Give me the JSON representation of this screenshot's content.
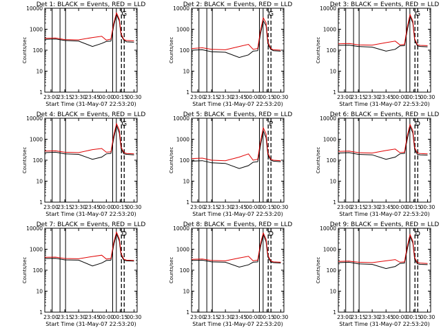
{
  "chart_data": [
    {
      "type": "line",
      "title": "Det 1: BLACK = Events, RED = LLD",
      "xlabel": "Start Time (31-May-07 22:53:20)",
      "ylabel": "Counts/sec",
      "xlim": [
        "22:53:20",
        "00:33:20"
      ],
      "ylim": [
        1,
        10000
      ],
      "y_scale": "log",
      "x_ticks": [
        "23:00",
        "23:15",
        "23:30",
        "23:45",
        "00:00",
        "00:15",
        "00:30"
      ],
      "y_ticks": [
        "1",
        "10",
        "100",
        "1000",
        "10000"
      ],
      "marker_text": "G",
      "series": [
        {
          "color": "#000000",
          "x": [
            "22:53:20",
            "23:05",
            "23:15",
            "23:30",
            "23:45",
            "23:55",
            "00:00",
            "00:05",
            "00:08",
            "00:11",
            "00:14",
            "00:16",
            "00:19",
            "00:22",
            "00:30"
          ],
          "y": [
            330,
            340,
            290,
            270,
            150,
            210,
            260,
            270,
            1500,
            5000,
            2500,
            500,
            300,
            250,
            240
          ]
        },
        {
          "color": "#e00000",
          "x": [
            "22:53:20",
            "23:05",
            "23:15",
            "23:30",
            "23:45",
            "23:55",
            "00:00",
            "00:05",
            "00:08",
            "00:11",
            "00:14",
            "00:16",
            "00:19",
            "00:22",
            "00:30"
          ],
          "y": [
            370,
            380,
            320,
            310,
            400,
            460,
            300,
            340,
            2000,
            6000,
            3000,
            600,
            320,
            290,
            280
          ]
        }
      ]
    },
    {
      "type": "line",
      "title": "Det 2: BLACK = Events, RED = LLD",
      "xlabel": "Start Time (31-May-07 22:53:20)",
      "ylabel": "Counts/sec",
      "xlim": [
        "22:53:20",
        "00:33:20"
      ],
      "ylim": [
        1,
        10000
      ],
      "y_scale": "log",
      "x_ticks": [
        "23:00",
        "23:15",
        "23:30",
        "23:45",
        "00:00",
        "00:15",
        "00:30"
      ],
      "y_ticks": [
        "1",
        "10",
        "100",
        "1000",
        "10000"
      ],
      "marker_text": "G",
      "series": [
        {
          "color": "#000000",
          "x": [
            "22:53:20",
            "23:05",
            "23:15",
            "23:30",
            "23:45",
            "23:55",
            "00:00",
            "00:05",
            "00:08",
            "00:11",
            "00:14",
            "00:16",
            "00:19",
            "00:22",
            "00:30"
          ],
          "y": [
            100,
            105,
            85,
            80,
            45,
            60,
            90,
            95,
            600,
            2500,
            1500,
            200,
            110,
            95,
            90
          ]
        },
        {
          "color": "#e00000",
          "x": [
            "22:53:20",
            "23:05",
            "23:15",
            "23:30",
            "23:45",
            "23:55",
            "00:00",
            "00:05",
            "00:08",
            "00:11",
            "00:14",
            "00:16",
            "00:19",
            "00:22",
            "00:30"
          ],
          "y": [
            120,
            130,
            110,
            105,
            150,
            190,
            110,
            120,
            900,
            3500,
            2000,
            250,
            120,
            105,
            100
          ]
        }
      ]
    },
    {
      "type": "line",
      "title": "Det 3: BLACK = Events, RED = LLD",
      "xlabel": "Start Time (31-May-07 22:53:20)",
      "ylabel": "Counts/sec",
      "xlim": [
        "22:53:20",
        "00:33:20"
      ],
      "ylim": [
        1,
        10000
      ],
      "y_scale": "log",
      "x_ticks": [
        "23:00",
        "23:15",
        "23:30",
        "23:45",
        "00:00",
        "00:15",
        "00:30"
      ],
      "y_ticks": [
        "1",
        "10",
        "100",
        "1000",
        "10000"
      ],
      "marker_text": "G",
      "series": [
        {
          "color": "#000000",
          "x": [
            "22:53:20",
            "23:05",
            "23:15",
            "23:30",
            "23:45",
            "23:55",
            "00:00",
            "00:05",
            "00:08",
            "00:11",
            "00:14",
            "00:16",
            "00:19",
            "00:22",
            "00:30"
          ],
          "y": [
            170,
            175,
            150,
            140,
            90,
            110,
            160,
            165,
            900,
            4000,
            2000,
            300,
            160,
            150,
            145
          ]
        },
        {
          "color": "#e00000",
          "x": [
            "22:53:20",
            "23:05",
            "23:15",
            "23:30",
            "23:45",
            "23:55",
            "00:00",
            "00:05",
            "00:08",
            "00:11",
            "00:14",
            "00:16",
            "00:19",
            "00:22",
            "00:30"
          ],
          "y": [
            200,
            210,
            180,
            175,
            230,
            270,
            180,
            190,
            1300,
            5000,
            2500,
            350,
            180,
            170,
            165
          ]
        }
      ]
    },
    {
      "type": "line",
      "title": "Det 4: BLACK = Events, RED = LLD",
      "xlabel": "Start Time (31-May-07 22:53:20)",
      "ylabel": "Counts/sec",
      "xlim": [
        "22:53:20",
        "00:33:20"
      ],
      "ylim": [
        1,
        10000
      ],
      "y_scale": "log",
      "x_ticks": [
        "23:00",
        "23:15",
        "23:30",
        "23:45",
        "00:00",
        "00:15",
        "00:30"
      ],
      "y_ticks": [
        "1",
        "10",
        "100",
        "1000",
        "10000"
      ],
      "marker_text": "G",
      "series": [
        {
          "color": "#000000",
          "x": [
            "22:53:20",
            "23:05",
            "23:15",
            "23:30",
            "23:45",
            "23:55",
            "00:00",
            "00:05",
            "00:08",
            "00:11",
            "00:14",
            "00:16",
            "00:19",
            "00:22",
            "00:30"
          ],
          "y": [
            230,
            240,
            200,
            190,
            110,
            140,
            200,
            210,
            1100,
            4500,
            2000,
            350,
            200,
            190,
            180
          ]
        },
        {
          "color": "#e00000",
          "x": [
            "22:53:20",
            "23:05",
            "23:15",
            "23:30",
            "23:45",
            "23:55",
            "00:00",
            "00:05",
            "00:08",
            "00:11",
            "00:14",
            "00:16",
            "00:19",
            "00:22",
            "00:30"
          ],
          "y": [
            270,
            280,
            240,
            230,
            320,
            360,
            240,
            250,
            1600,
            5500,
            2800,
            420,
            230,
            210,
            200
          ]
        }
      ]
    },
    {
      "type": "line",
      "title": "Det 5: BLACK = Events, RED = LLD",
      "xlabel": "Start Time (31-May-07 22:53:20)",
      "ylabel": "Counts/sec",
      "xlim": [
        "22:53:20",
        "00:33:20"
      ],
      "ylim": [
        1,
        10000
      ],
      "y_scale": "log",
      "x_ticks": [
        "23:00",
        "23:15",
        "23:30",
        "23:45",
        "00:00",
        "00:15",
        "00:30"
      ],
      "y_ticks": [
        "1",
        "10",
        "100",
        "1000",
        "10000"
      ],
      "marker_text": "P",
      "series": [
        {
          "color": "#000000",
          "x": [
            "22:53:20",
            "23:05",
            "23:15",
            "23:30",
            "23:45",
            "23:55",
            "00:00",
            "00:05",
            "00:08",
            "00:11",
            "00:14",
            "00:16",
            "00:19",
            "00:22",
            "00:30"
          ],
          "y": [
            90,
            95,
            75,
            70,
            40,
            55,
            80,
            85,
            500,
            2500,
            1200,
            180,
            100,
            90,
            85
          ]
        },
        {
          "color": "#e00000",
          "x": [
            "22:53:20",
            "23:05",
            "23:15",
            "23:30",
            "23:45",
            "23:55",
            "00:00",
            "00:05",
            "00:08",
            "00:11",
            "00:14",
            "00:16",
            "00:19",
            "00:22",
            "00:30"
          ],
          "y": [
            120,
            125,
            100,
            95,
            140,
            200,
            100,
            110,
            800,
            3500,
            1800,
            220,
            110,
            100,
            95
          ]
        }
      ]
    },
    {
      "type": "line",
      "title": "Det 6: BLACK = Events, RED = LLD",
      "xlabel": "Start Time (31-May-07 22:53:20)",
      "ylabel": "Counts/sec",
      "xlim": [
        "22:53:20",
        "00:33:20"
      ],
      "ylim": [
        1,
        10000
      ],
      "y_scale": "log",
      "x_ticks": [
        "23:00",
        "23:15",
        "23:30",
        "23:45",
        "00:00",
        "00:15",
        "00:30"
      ],
      "y_ticks": [
        "1",
        "10",
        "100",
        "1000",
        "10000"
      ],
      "marker_text": "D",
      "series": [
        {
          "color": "#000000",
          "x": [
            "22:53:20",
            "23:05",
            "23:15",
            "23:30",
            "23:45",
            "23:55",
            "00:00",
            "00:05",
            "00:08",
            "00:11",
            "00:14",
            "00:16",
            "00:19",
            "00:22",
            "00:30"
          ],
          "y": [
            220,
            230,
            190,
            180,
            110,
            140,
            200,
            210,
            1000,
            4000,
            2000,
            320,
            190,
            180,
            175
          ]
        },
        {
          "color": "#e00000",
          "x": [
            "22:53:20",
            "23:05",
            "23:15",
            "23:30",
            "23:45",
            "23:55",
            "00:00",
            "00:05",
            "00:08",
            "00:11",
            "00:14",
            "00:16",
            "00:19",
            "00:22",
            "00:30"
          ],
          "y": [
            260,
            270,
            230,
            220,
            290,
            340,
            230,
            240,
            1500,
            5000,
            2600,
            400,
            220,
            210,
            200
          ]
        }
      ]
    },
    {
      "type": "line",
      "title": "Det 7: BLACK = Events, RED = LLD",
      "xlabel": "Start Time (31-May-07 22:53:20)",
      "ylabel": "Counts/sec",
      "xlim": [
        "22:53:20",
        "00:33:20"
      ],
      "ylim": [
        1,
        10000
      ],
      "y_scale": "log",
      "x_ticks": [
        "23:00",
        "23:15",
        "23:30",
        "23:45",
        "00:00",
        "00:15",
        "00:30"
      ],
      "y_ticks": [
        "1",
        "10",
        "100",
        "1000",
        "10000"
      ],
      "marker_text": "D",
      "series": [
        {
          "color": "#000000",
          "x": [
            "22:53:20",
            "23:05",
            "23:15",
            "23:30",
            "23:45",
            "23:55",
            "00:00",
            "00:05",
            "00:08",
            "00:11",
            "00:14",
            "00:16",
            "00:19",
            "00:22",
            "00:30"
          ],
          "y": [
            360,
            370,
            310,
            300,
            160,
            220,
            290,
            300,
            1600,
            5500,
            2500,
            500,
            300,
            280,
            270
          ]
        },
        {
          "color": "#e00000",
          "x": [
            "22:53:20",
            "23:05",
            "23:15",
            "23:30",
            "23:45",
            "23:55",
            "00:00",
            "00:05",
            "00:08",
            "00:11",
            "00:14",
            "00:16",
            "00:19",
            "00:22",
            "00:30"
          ],
          "y": [
            410,
            420,
            360,
            350,
            450,
            520,
            340,
            360,
            2200,
            6500,
            3200,
            620,
            330,
            300,
            290
          ]
        }
      ]
    },
    {
      "type": "line",
      "title": "Det 8: BLACK = Events, RED = LLD",
      "xlabel": "Start Time (31-May-07 22:53:20)",
      "ylabel": "Counts/sec",
      "xlim": [
        "22:53:20",
        "00:33:20"
      ],
      "ylim": [
        1,
        10000
      ],
      "y_scale": "log",
      "x_ticks": [
        "23:00",
        "23:15",
        "23:30",
        "23:45",
        "00:00",
        "00:15",
        "00:30"
      ],
      "y_ticks": [
        "1",
        "10",
        "100",
        "1000",
        "10000"
      ],
      "marker_text": "D",
      "series": [
        {
          "color": "#000000",
          "x": [
            "22:53:20",
            "23:05",
            "23:15",
            "23:30",
            "23:45",
            "23:55",
            "00:00",
            "00:05",
            "00:08",
            "00:11",
            "00:14",
            "00:16",
            "00:19",
            "00:22",
            "00:30"
          ],
          "y": [
            290,
            300,
            250,
            240,
            140,
            180,
            240,
            250,
            1300,
            5000,
            2300,
            420,
            250,
            230,
            220
          ]
        },
        {
          "color": "#e00000",
          "x": [
            "22:53:20",
            "23:05",
            "23:15",
            "23:30",
            "23:45",
            "23:55",
            "00:00",
            "00:05",
            "00:08",
            "00:11",
            "00:14",
            "00:16",
            "00:19",
            "00:22",
            "00:30"
          ],
          "y": [
            330,
            340,
            290,
            280,
            380,
            460,
            280,
            300,
            1900,
            6000,
            3000,
            520,
            280,
            250,
            240
          ]
        }
      ]
    },
    {
      "type": "line",
      "title": "Det 9: BLACK = Events, RED = LLD",
      "xlabel": "Start Time (31-May-07 22:53:20)",
      "ylabel": "Counts/sec",
      "xlim": [
        "22:53:20",
        "00:33:20"
      ],
      "ylim": [
        1,
        10000
      ],
      "y_scale": "log",
      "x_ticks": [
        "23:00",
        "23:15",
        "23:30",
        "23:45",
        "00:00",
        "00:15",
        "00:30"
      ],
      "y_ticks": [
        "1",
        "10",
        "100",
        "1000",
        "10000"
      ],
      "marker_text": "D",
      "series": [
        {
          "color": "#000000",
          "x": [
            "22:53:20",
            "23:05",
            "23:15",
            "23:30",
            "23:45",
            "23:55",
            "00:00",
            "00:05",
            "00:08",
            "00:11",
            "00:14",
            "00:16",
            "00:19",
            "00:22",
            "00:30"
          ],
          "y": [
            230,
            240,
            200,
            190,
            120,
            150,
            210,
            220,
            1000,
            4000,
            2000,
            330,
            200,
            190,
            185
          ]
        },
        {
          "color": "#e00000",
          "x": [
            "22:53:20",
            "23:05",
            "23:15",
            "23:30",
            "23:45",
            "23:55",
            "00:00",
            "00:05",
            "00:08",
            "00:11",
            "00:14",
            "00:16",
            "00:19",
            "00:22",
            "00:30"
          ],
          "y": [
            260,
            270,
            240,
            230,
            280,
            320,
            240,
            250,
            1400,
            5000,
            2500,
            400,
            230,
            220,
            210
          ]
        }
      ]
    }
  ]
}
